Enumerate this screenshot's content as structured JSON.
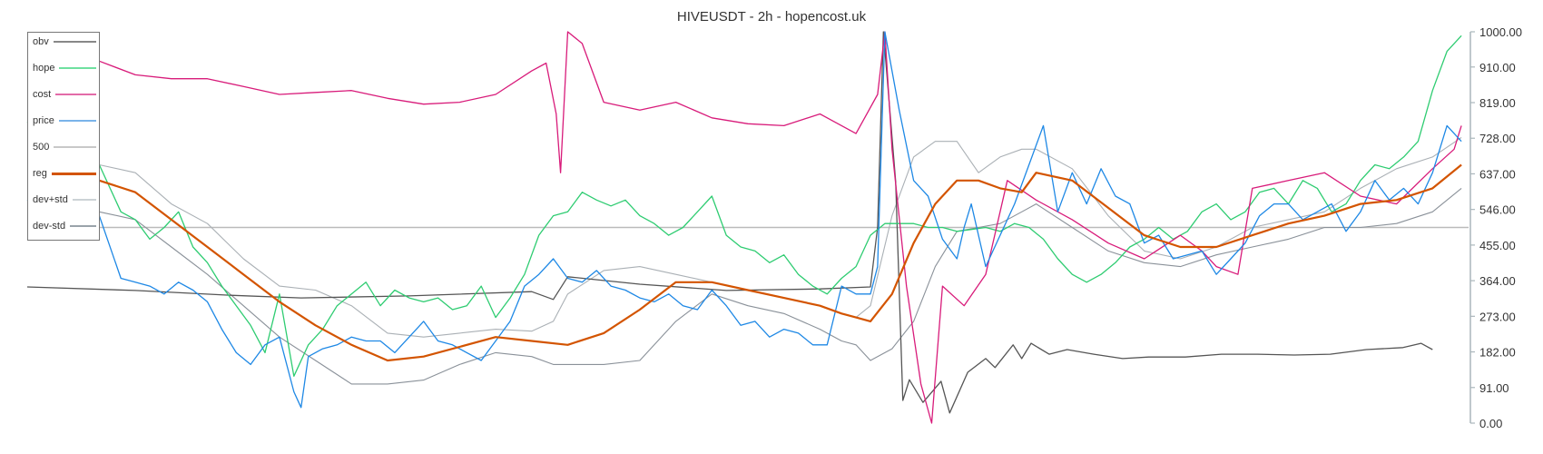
{
  "title": "HIVEUSDT - 2h - hopencost.uk",
  "chart_data": {
    "type": "line",
    "title": "HIVEUSDT - 2h - hopencost.uk",
    "xlabel": "",
    "ylabel": "",
    "ylim": [
      0,
      1000
    ],
    "y_ticks": [
      "1000.00",
      "910.00",
      "819.00",
      "728.00",
      "637.00",
      "546.00",
      "455.00",
      "364.00",
      "273.00",
      "182.00",
      "91.00",
      "0.00"
    ],
    "y_axis_position": "right",
    "grid": false,
    "legend_position": "top-left",
    "x_range": [
      0,
      200
    ],
    "series": [
      {
        "name": "obv",
        "color": "#555555",
        "width": 1.3,
        "x": [
          0,
          15,
          28,
          38,
          53,
          70,
          73,
          75,
          85,
          97,
          110,
          117,
          118,
          118.8,
          120.5,
          121.5,
          122.4,
          124.3,
          126.8,
          128,
          130.5,
          133,
          134.3,
          136.8,
          138,
          139.3,
          141.8,
          144.3,
          148,
          152,
          155.6,
          160.7,
          165.7,
          170.7,
          175.8,
          180.8,
          185.8,
          190.9,
          193.4,
          195
        ],
        "values": [
          348,
          339,
          327,
          320,
          325,
          336,
          316,
          374,
          355,
          339,
          343,
          348,
          501,
          1000,
          617,
          58,
          111,
          53,
          107,
          26,
          130,
          165,
          142,
          200,
          165,
          204,
          176,
          188,
          176,
          165,
          169,
          169,
          176,
          176,
          174,
          176,
          188,
          193,
          204,
          188
        ]
      },
      {
        "name": "hope",
        "color": "#2ecc71",
        "width": 1.3,
        "x": [
          0,
          3,
          6,
          8,
          10,
          13,
          15,
          17,
          19,
          21,
          23,
          25,
          27,
          29,
          31,
          33,
          35,
          37,
          39,
          41,
          43,
          45,
          47,
          49,
          51,
          53,
          55,
          57,
          59,
          61,
          63,
          65,
          67,
          69,
          71,
          73,
          75,
          77,
          79,
          81,
          83,
          85,
          87,
          89,
          91,
          93,
          95,
          97,
          99,
          101,
          103,
          105,
          107,
          109,
          111,
          113,
          115,
          117,
          119,
          121,
          123,
          125,
          127,
          129,
          131,
          133,
          135,
          137,
          139,
          141,
          143,
          145,
          147,
          149,
          151,
          153,
          155,
          157,
          159,
          161,
          163,
          165,
          167,
          169,
          171,
          173,
          175,
          177,
          179,
          181,
          183,
          185,
          187,
          189,
          191,
          193,
          195,
          197,
          199
        ],
        "values": [
          770,
          720,
          760,
          735,
          660,
          540,
          520,
          470,
          500,
          540,
          450,
          410,
          350,
          300,
          250,
          180,
          330,
          120,
          200,
          240,
          300,
          330,
          360,
          300,
          340,
          320,
          310,
          320,
          290,
          300,
          350,
          270,
          320,
          380,
          480,
          530,
          540,
          590,
          570,
          555,
          570,
          530,
          510,
          480,
          500,
          540,
          580,
          480,
          450,
          440,
          410,
          430,
          380,
          350,
          330,
          370,
          400,
          480,
          510,
          510,
          510,
          500,
          500,
          490,
          495,
          500,
          490,
          510,
          500,
          470,
          420,
          380,
          360,
          380,
          410,
          450,
          470,
          500,
          470,
          490,
          540,
          560,
          520,
          540,
          590,
          600,
          560,
          620,
          600,
          540,
          560,
          620,
          660,
          650,
          680,
          720,
          850,
          950,
          990
        ]
      },
      {
        "name": "cost",
        "color": "#d81b7a",
        "width": 1.3,
        "x": [
          0,
          5,
          10,
          15,
          20,
          25,
          30,
          35,
          40,
          45,
          50,
          55,
          60,
          65,
          70,
          72,
          73.4,
          74,
          75,
          77,
          80,
          85,
          90,
          95,
          100,
          105,
          110,
          115,
          118,
          119,
          120,
          122,
          124,
          125.5,
          127,
          130,
          133,
          136,
          140,
          145,
          150,
          155,
          160,
          163,
          165,
          168,
          170,
          175,
          180,
          185,
          190,
          195,
          198,
          199
        ],
        "values": [
          940,
          930,
          925,
          890,
          880,
          880,
          860,
          840,
          845,
          850,
          830,
          815,
          820,
          840,
          900,
          920,
          790,
          640,
          1000,
          970,
          820,
          800,
          820,
          780,
          765,
          760,
          790,
          740,
          840,
          1000,
          700,
          350,
          100,
          0,
          350,
          300,
          380,
          620,
          570,
          520,
          460,
          420,
          480,
          440,
          400,
          380,
          600,
          620,
          640,
          580,
          560,
          650,
          700,
          760
        ]
      },
      {
        "name": "price",
        "color": "#1e88e5",
        "width": 1.3,
        "x": [
          0,
          3,
          6,
          8,
          10,
          13,
          15,
          17,
          19,
          21,
          23,
          25,
          27,
          29,
          31,
          33,
          35,
          37,
          38,
          39,
          41,
          43,
          45,
          47,
          49,
          51,
          53,
          55,
          57,
          59,
          61,
          63,
          65,
          67,
          69,
          71,
          73,
          75,
          77,
          79,
          81,
          83,
          85,
          87,
          89,
          91,
          93,
          95,
          97,
          99,
          101,
          103,
          105,
          107,
          109,
          111,
          113,
          115,
          117,
          118,
          119,
          121,
          123,
          125,
          127,
          129,
          130,
          131,
          133,
          135,
          137,
          139,
          141,
          143,
          145,
          147,
          149,
          151,
          153,
          155,
          157,
          159,
          161,
          163,
          165,
          167,
          169,
          171,
          173,
          175,
          177,
          179,
          181,
          183,
          185,
          187,
          189,
          191,
          193,
          195,
          197,
          199
        ],
        "values": [
          570,
          530,
          560,
          560,
          530,
          370,
          360,
          350,
          330,
          360,
          340,
          310,
          240,
          180,
          150,
          200,
          220,
          80,
          40,
          170,
          190,
          200,
          220,
          210,
          210,
          180,
          220,
          260,
          210,
          200,
          180,
          160,
          210,
          260,
          350,
          380,
          420,
          370,
          360,
          390,
          350,
          340,
          320,
          310,
          330,
          300,
          290,
          340,
          300,
          250,
          260,
          220,
          240,
          230,
          200,
          200,
          350,
          330,
          330,
          400,
          1000,
          800,
          620,
          580,
          470,
          420,
          500,
          560,
          400,
          480,
          560,
          660,
          760,
          540,
          640,
          560,
          650,
          580,
          560,
          460,
          480,
          420,
          430,
          440,
          380,
          420,
          460,
          530,
          560,
          560,
          520,
          540,
          560,
          490,
          540,
          620,
          570,
          600,
          560,
          640,
          760,
          720
        ]
      },
      {
        "name": "500",
        "color": "#bbbbbb",
        "width": 1.4,
        "x": [
          0,
          200
        ],
        "values": [
          500,
          500
        ]
      },
      {
        "name": "reg",
        "color": "#d35400",
        "width": 2.2,
        "x": [
          10,
          15,
          20,
          25,
          30,
          35,
          40,
          45,
          50,
          55,
          60,
          65,
          70,
          75,
          80,
          85,
          90,
          95,
          100,
          105,
          110,
          113,
          115,
          117,
          120,
          123,
          126,
          129,
          132,
          135,
          138,
          140,
          145,
          150,
          155,
          160,
          165,
          170,
          175,
          180,
          185,
          190,
          195,
          199
        ],
        "values": [
          620,
          590,
          520,
          450,
          380,
          310,
          250,
          200,
          160,
          170,
          195,
          220,
          210,
          200,
          230,
          290,
          360,
          360,
          340,
          320,
          300,
          280,
          270,
          260,
          330,
          460,
          560,
          620,
          620,
          600,
          590,
          640,
          620,
          550,
          480,
          450,
          450,
          480,
          510,
          530,
          560,
          570,
          600,
          660
        ]
      },
      {
        "name": "dev+std",
        "color": "#aab0b5",
        "width": 1.1,
        "x": [
          10,
          15,
          20,
          25,
          30,
          35,
          40,
          45,
          50,
          55,
          60,
          65,
          70,
          73,
          75,
          80,
          85,
          90,
          95,
          100,
          105,
          110,
          113,
          115,
          117,
          120,
          123,
          126,
          129,
          132,
          135,
          138,
          140,
          145,
          150,
          155,
          160,
          165,
          170,
          175,
          180,
          185,
          190,
          195,
          199
        ],
        "values": [
          660,
          640,
          560,
          510,
          420,
          350,
          340,
          300,
          230,
          220,
          230,
          240,
          235,
          260,
          330,
          390,
          400,
          380,
          360,
          340,
          320,
          300,
          280,
          270,
          300,
          530,
          680,
          720,
          720,
          640,
          680,
          700,
          700,
          650,
          530,
          440,
          420,
          450,
          500,
          520,
          540,
          600,
          650,
          680,
          730
        ]
      },
      {
        "name": "dev-std",
        "color": "#8a9199",
        "width": 1.1,
        "x": [
          10,
          15,
          20,
          25,
          30,
          35,
          40,
          45,
          50,
          55,
          60,
          65,
          70,
          73,
          75,
          80,
          85,
          90,
          95,
          100,
          105,
          110,
          113,
          115,
          117,
          120,
          123,
          126,
          129,
          132,
          135,
          138,
          140,
          145,
          150,
          155,
          160,
          165,
          170,
          175,
          180,
          185,
          190,
          195,
          199
        ],
        "values": [
          540,
          520,
          450,
          380,
          300,
          220,
          160,
          100,
          100,
          110,
          150,
          180,
          170,
          150,
          150,
          150,
          160,
          260,
          330,
          300,
          280,
          240,
          210,
          200,
          160,
          190,
          260,
          400,
          490,
          500,
          510,
          540,
          560,
          500,
          440,
          410,
          400,
          430,
          450,
          470,
          500,
          500,
          510,
          540,
          600
        ]
      }
    ]
  },
  "legend": {
    "items": [
      {
        "label": "obv",
        "color": "#888888"
      },
      {
        "label": "hope",
        "color": "#6fe0a0"
      },
      {
        "label": "cost",
        "color": "#e36ba8"
      },
      {
        "label": "price",
        "color": "#7ab4ea"
      },
      {
        "label": "500",
        "color": "#c8c8c8"
      },
      {
        "label": "reg",
        "color": "#d35400"
      },
      {
        "label": "dev+std",
        "color": "#ccd2d6"
      },
      {
        "label": "dev-std",
        "color": "#9aa3aa"
      }
    ]
  },
  "axis": {
    "color": "#aab6bb"
  }
}
